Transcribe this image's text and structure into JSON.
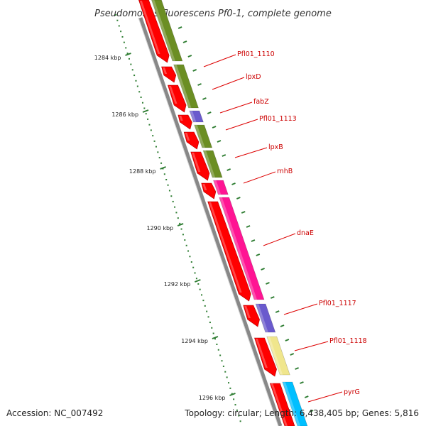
{
  "title": "Pseudomonas fluorescens Pf0-1, complete genome",
  "footer": {
    "accession": "Accession: NC_007492",
    "topology": "Topology: circular; Length: 6,438,405 bp; Genes: 5,816"
  },
  "ticks": [
    {
      "label": "1284 kbp"
    },
    {
      "label": "1286 kbp"
    },
    {
      "label": "1288 kbp"
    },
    {
      "label": "1290 kbp"
    },
    {
      "label": "1292 kbp"
    },
    {
      "label": "1294 kbp"
    },
    {
      "label": "1296 kbp"
    }
  ],
  "genes": [
    {
      "label": "Pfl01_1110",
      "color": "#6b8e23"
    },
    {
      "label": "lpxD",
      "color": "#6b8e23"
    },
    {
      "label": "fabZ",
      "color": "#6a5acd"
    },
    {
      "label": "Pfl01_1113",
      "color": "#6b8e23"
    },
    {
      "label": "lpxB",
      "color": "#6b8e23"
    },
    {
      "label": "rnhB",
      "color": "#ff1493"
    },
    {
      "label": "dnaE",
      "color": "#ff1493"
    },
    {
      "label": "Pfl01_1117",
      "color": "#6a5acd"
    },
    {
      "label": "Pfl01_1118",
      "color": "#f0e68c"
    },
    {
      "label": "pyrG",
      "color": "#00bfff"
    }
  ],
  "colors": {
    "cds_arrow": "#ff0000",
    "backbone": "#888888",
    "tick_dot": "#2e7d32",
    "label_line": "#dd0000"
  }
}
